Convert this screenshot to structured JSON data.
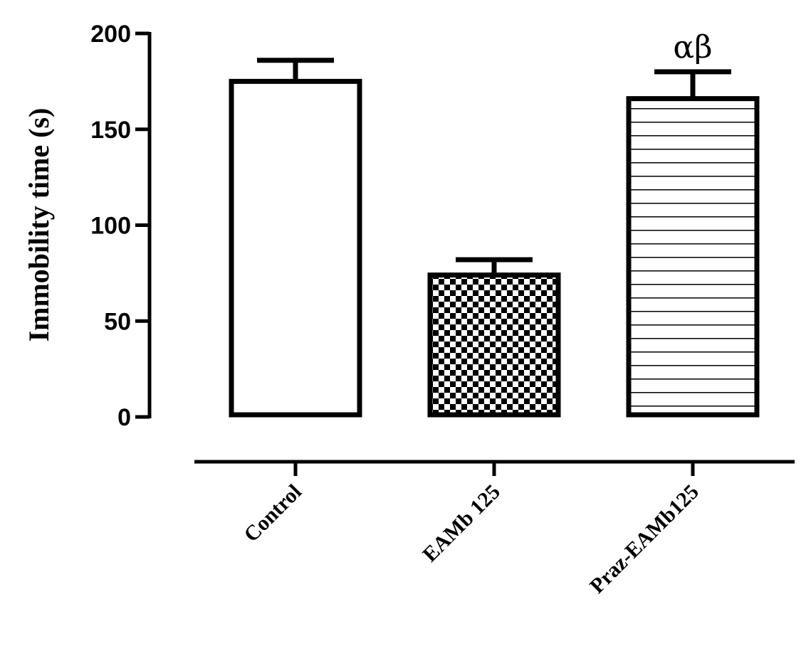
{
  "chart_data": {
    "type": "bar",
    "ylabel": "Immobility time (s)",
    "xlabel": "",
    "ylim": [
      0,
      200
    ],
    "yticks": [
      0,
      50,
      100,
      150,
      200
    ],
    "categories": [
      "Control",
      "EAMb 125",
      "Praz-EAMb125"
    ],
    "values": [
      175,
      74,
      166
    ],
    "errors": [
      11,
      8,
      14
    ],
    "patterns": [
      "none",
      "checker",
      "horizontal-lines"
    ],
    "annotations": [
      "",
      "",
      "αβ"
    ],
    "bar_color": "#000000",
    "fill_color": "#ffffff",
    "grid": false,
    "legend": "none"
  }
}
